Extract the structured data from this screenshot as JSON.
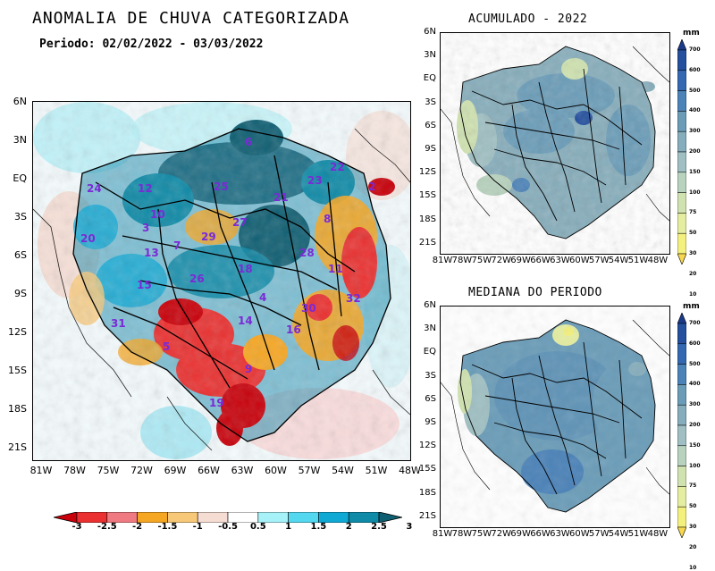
{
  "main_map": {
    "title": "ANOMALIA DE CHUVA CATEGORIZADA",
    "period": "Periodo: 02/02/2022 - 03/03/2022",
    "lat_labels": [
      "6N",
      "3N",
      "EQ",
      "3S",
      "6S",
      "9S",
      "12S",
      "15S",
      "18S",
      "21S"
    ],
    "lon_labels": [
      "81W",
      "78W",
      "75W",
      "72W",
      "69W",
      "66W",
      "63W",
      "60W",
      "57W",
      "54W",
      "51W",
      "48W"
    ],
    "basin_labels": [
      "6",
      "22",
      "24",
      "12",
      "23",
      "21",
      "25",
      "2",
      "10",
      "3",
      "27",
      "8",
      "20",
      "29",
      "7",
      "13",
      "28",
      "18",
      "11",
      "26",
      "15",
      "4",
      "32",
      "30",
      "31",
      "14",
      "16",
      "5",
      "9",
      "19"
    ],
    "colorbar": {
      "colors": [
        "#c8000a",
        "#ea3030",
        "#ef7a82",
        "#f5a623",
        "#f7c878",
        "#f6ddd3",
        "#ffffff",
        "#a6f2f8",
        "#53d8f0",
        "#10a9d4",
        "#0f8aa7",
        "#0f5f73"
      ],
      "tick_labels": [
        "-3",
        "-2.5",
        "-2",
        "-1.5",
        "-1",
        "-0.5",
        "0.5",
        "1",
        "1.5",
        "2",
        "2.5",
        "3"
      ]
    }
  },
  "acumulado_map": {
    "title": "ACUMULADO - 2022",
    "lat_labels": [
      "6N",
      "3N",
      "EQ",
      "3S",
      "6S",
      "9S",
      "12S",
      "15S",
      "18S",
      "21S"
    ],
    "lon_labels": [
      "81W",
      "78W",
      "75W",
      "72W",
      "69W",
      "66W",
      "63W",
      "60W",
      "57W",
      "54W",
      "51W",
      "48W"
    ]
  },
  "mediana_map": {
    "title": "MEDIANA DO PERIODO",
    "lat_labels": [
      "6N",
      "3N",
      "EQ",
      "3S",
      "6S",
      "9S",
      "12S",
      "15S",
      "18S",
      "21S"
    ],
    "lon_labels": [
      "81W",
      "78W",
      "75W",
      "72W",
      "69W",
      "66W",
      "63W",
      "60W",
      "57W",
      "54W",
      "51W",
      "48W"
    ]
  },
  "precip_colorbar": {
    "unit": "mm",
    "colors": [
      "#1a3a8c",
      "#24509e",
      "#3468b0",
      "#4b82b8",
      "#6a9cb8",
      "#86adbb",
      "#9fbfc2",
      "#b7d2bd",
      "#cfe2b0",
      "#e4eda0",
      "#f3f07e",
      "#f8d84e"
    ],
    "tick_labels": [
      "700",
      "600",
      "500",
      "400",
      "300",
      "200",
      "150",
      "100",
      "75",
      "50",
      "30",
      "20",
      "10"
    ]
  }
}
